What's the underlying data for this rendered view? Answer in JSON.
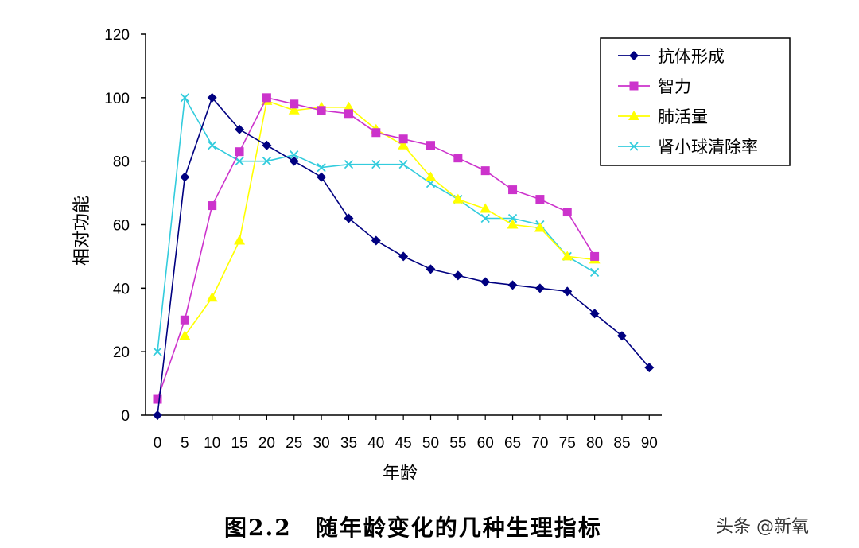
{
  "chart_data": {
    "type": "line",
    "xlabel": "年龄",
    "ylabel": "相对功能",
    "ylim": [
      0,
      120
    ],
    "yticks": [
      0,
      20,
      40,
      60,
      80,
      100,
      120
    ],
    "xticks": [
      0,
      5,
      10,
      15,
      20,
      25,
      30,
      35,
      40,
      45,
      50,
      55,
      60,
      65,
      70,
      75,
      80,
      85,
      90
    ],
    "grid": false,
    "legend_position": "top-right",
    "series": [
      {
        "name": "抗体形成",
        "color": "#000080",
        "marker": "diamond",
        "points": [
          [
            0,
            0
          ],
          [
            5,
            75
          ],
          [
            10,
            100
          ],
          [
            15,
            90
          ],
          [
            20,
            85
          ],
          [
            25,
            80
          ],
          [
            30,
            75
          ],
          [
            35,
            62
          ],
          [
            40,
            55
          ],
          [
            45,
            50
          ],
          [
            50,
            46
          ],
          [
            55,
            44
          ],
          [
            60,
            42
          ],
          [
            65,
            41
          ],
          [
            70,
            40
          ],
          [
            75,
            39
          ],
          [
            80,
            32
          ],
          [
            85,
            25
          ],
          [
            90,
            15
          ]
        ]
      },
      {
        "name": "智力",
        "color": "#cc33cc",
        "marker": "square",
        "points": [
          [
            0,
            5
          ],
          [
            5,
            30
          ],
          [
            10,
            66
          ],
          [
            15,
            83
          ],
          [
            20,
            100
          ],
          [
            25,
            98
          ],
          [
            30,
            96
          ],
          [
            35,
            95
          ],
          [
            40,
            89
          ],
          [
            45,
            87
          ],
          [
            50,
            85
          ],
          [
            55,
            81
          ],
          [
            60,
            77
          ],
          [
            65,
            71
          ],
          [
            70,
            68
          ],
          [
            75,
            64
          ],
          [
            80,
            50
          ]
        ]
      },
      {
        "name": "肺活量",
        "color": "#ffff00",
        "marker": "triangle",
        "points": [
          [
            5,
            25
          ],
          [
            10,
            37
          ],
          [
            15,
            55
          ],
          [
            20,
            99
          ],
          [
            25,
            96
          ],
          [
            30,
            97
          ],
          [
            35,
            97
          ],
          [
            40,
            90
          ],
          [
            45,
            85
          ],
          [
            50,
            75
          ],
          [
            55,
            68
          ],
          [
            60,
            65
          ],
          [
            65,
            60
          ],
          [
            70,
            59
          ],
          [
            75,
            50
          ],
          [
            80,
            49
          ]
        ]
      },
      {
        "name": "肾小球清除率",
        "color": "#33ccdd",
        "marker": "x",
        "points": [
          [
            0,
            20
          ],
          [
            5,
            100
          ],
          [
            10,
            85
          ],
          [
            15,
            80
          ],
          [
            20,
            80
          ],
          [
            25,
            82
          ],
          [
            30,
            78
          ],
          [
            35,
            79
          ],
          [
            40,
            79
          ],
          [
            45,
            79
          ],
          [
            50,
            73
          ],
          [
            55,
            68
          ],
          [
            60,
            62
          ],
          [
            65,
            62
          ],
          [
            70,
            60
          ],
          [
            75,
            50
          ],
          [
            80,
            45
          ]
        ]
      }
    ]
  },
  "caption": "图2.2　随年龄变化的几种生理指标",
  "watermark": "头条 @新氧"
}
